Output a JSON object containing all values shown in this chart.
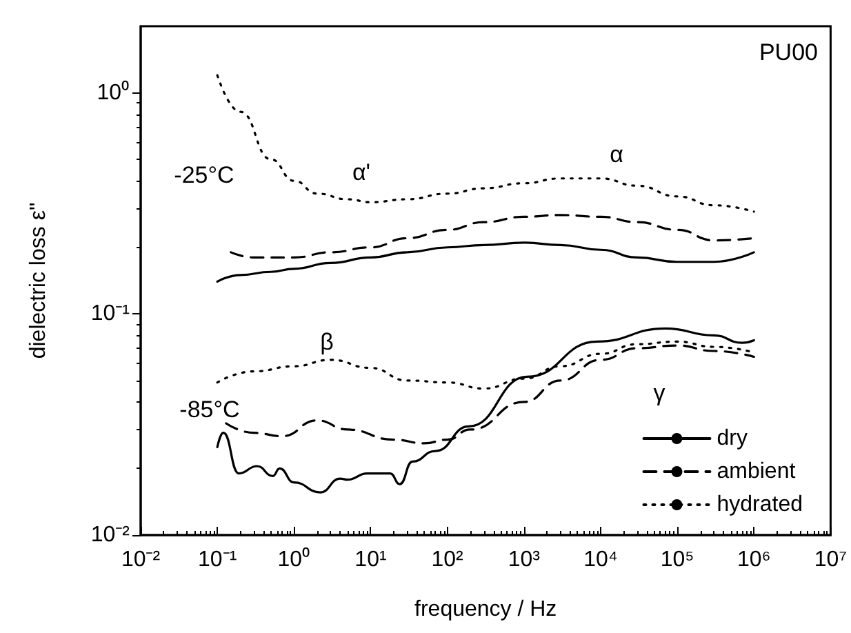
{
  "chart_data": {
    "type": "line",
    "xlabel": "frequency / Hz",
    "ylabel": "dielectric loss ε\"",
    "log": "xy",
    "grid": false,
    "legend": "bottom right",
    "marker": "none",
    "xlim": [
      0.01,
      10000000
    ],
    "ylim": [
      0.01,
      2
    ],
    "xticks": [
      {
        "value": 0.01,
        "label": "10⁻²"
      },
      {
        "value": 0.1,
        "label": "10⁻¹"
      },
      {
        "value": 1,
        "label": "10⁰"
      },
      {
        "value": 10,
        "label": "10¹"
      },
      {
        "value": 100,
        "label": "10²"
      },
      {
        "value": 1000,
        "label": "10³"
      },
      {
        "value": 10000,
        "label": "10⁴"
      },
      {
        "value": 100000,
        "label": "10⁵"
      },
      {
        "value": 1000000,
        "label": "10⁶"
      },
      {
        "value": 10000000,
        "label": "10⁷"
      }
    ],
    "yticks": [
      {
        "value": 0.01,
        "label": "10⁻²"
      },
      {
        "value": 0.1,
        "label": "10⁻¹"
      },
      {
        "value": 1,
        "label": "10⁰"
      }
    ],
    "annotations": [
      "PU00",
      "-25°C",
      "α'",
      "α",
      "β",
      "-85°C",
      "γ"
    ],
    "series": [
      {
        "name": "dry",
        "color": "#000000",
        "line_style": "solid",
        "x": [
          0.1,
          0.2,
          0.5,
          1,
          3,
          10,
          30,
          100,
          300,
          1000,
          3000,
          10000,
          30000,
          100000,
          300000,
          1000000
        ],
        "values": [
          0.14,
          0.15,
          0.155,
          0.16,
          0.17,
          0.18,
          0.19,
          0.2,
          0.205,
          0.21,
          0.205,
          0.195,
          0.18,
          0.172,
          0.172,
          0.19
        ]
      },
      {
        "name": "ambient",
        "color": "#000000",
        "line_style": "dashed",
        "x": [
          0.15,
          0.3,
          1,
          3,
          10,
          30,
          100,
          300,
          1000,
          3000,
          10000,
          30000,
          100000,
          300000,
          1000000
        ],
        "values": [
          0.19,
          0.18,
          0.18,
          0.19,
          0.2,
          0.22,
          0.24,
          0.26,
          0.275,
          0.28,
          0.275,
          0.26,
          0.24,
          0.215,
          0.22
        ]
      },
      {
        "name": "hydrated",
        "color": "#000000",
        "line_style": "dotted",
        "x": [
          0.1,
          0.2,
          0.5,
          1,
          2,
          5,
          10,
          30,
          100,
          300,
          1000,
          3000,
          10000,
          30000,
          100000,
          300000,
          1000000
        ],
        "values": [
          1.2,
          0.82,
          0.5,
          0.4,
          0.35,
          0.33,
          0.32,
          0.33,
          0.35,
          0.37,
          0.39,
          0.41,
          0.41,
          0.38,
          0.34,
          0.31,
          0.29
        ]
      },
      {
        "color": "#000000",
        "line_style": "solid",
        "x": [
          0.1,
          0.12,
          0.19,
          0.33,
          0.53,
          0.65,
          1,
          2.2,
          4,
          5,
          9,
          18,
          24,
          35,
          70,
          190,
          1100,
          9000,
          70000,
          300000,
          700000,
          1000000
        ],
        "values": [
          0.025,
          0.029,
          0.019,
          0.0205,
          0.0185,
          0.02,
          0.0173,
          0.0156,
          0.018,
          0.0178,
          0.019,
          0.019,
          0.017,
          0.0215,
          0.024,
          0.031,
          0.052,
          0.075,
          0.086,
          0.08,
          0.074,
          0.076
        ]
      },
      {
        "color": "#000000",
        "line_style": "dashed",
        "x": [
          0.13,
          0.3,
          0.7,
          2,
          5,
          20,
          50,
          100,
          200,
          1000,
          3000,
          10000,
          30000,
          100000,
          300000,
          1000000
        ],
        "values": [
          0.032,
          0.029,
          0.028,
          0.033,
          0.03,
          0.027,
          0.026,
          0.027,
          0.03,
          0.04,
          0.05,
          0.062,
          0.07,
          0.072,
          0.068,
          0.064
        ]
      },
      {
        "color": "#000000",
        "line_style": "dotted",
        "x": [
          0.1,
          0.3,
          1,
          3,
          10,
          30,
          100,
          300,
          1000,
          3000,
          10000,
          30000,
          100000,
          300000,
          1000000
        ],
        "values": [
          0.049,
          0.055,
          0.058,
          0.062,
          0.057,
          0.05,
          0.049,
          0.046,
          0.051,
          0.058,
          0.066,
          0.073,
          0.075,
          0.071,
          0.067
        ]
      }
    ]
  }
}
